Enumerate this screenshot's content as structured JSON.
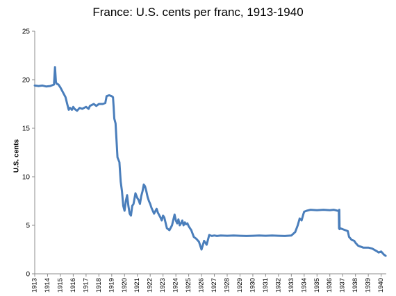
{
  "chart_data": {
    "type": "line",
    "title": "France: U.S. cents per franc, 1913-1940",
    "xlabel": "",
    "ylabel": "U.S. cents",
    "xlim": [
      1913,
      1940.4
    ],
    "ylim": [
      0,
      25
    ],
    "y_ticks": [
      "0",
      "5",
      "10",
      "15",
      "20",
      "25"
    ],
    "x_ticks": [
      "1913",
      "1914",
      "1915",
      "1916",
      "1917",
      "1918",
      "1919",
      "1920",
      "1921",
      "1922",
      "1923",
      "1924",
      "1925",
      "1926",
      "1927",
      "1928",
      "1929",
      "1930",
      "1931",
      "1932",
      "1933",
      "1934",
      "1935",
      "1936",
      "1937",
      "1938",
      "1939",
      "1940"
    ],
    "grid": false,
    "legend": "none",
    "series": [
      {
        "color": "#4a7ebb",
        "x": [
          1913.0,
          1913.3,
          1913.6,
          1913.9,
          1914.2,
          1914.5,
          1914.58,
          1914.65,
          1914.7,
          1914.85,
          1915.0,
          1915.2,
          1915.4,
          1915.55,
          1915.65,
          1915.75,
          1915.9,
          1916.0,
          1916.1,
          1916.3,
          1916.5,
          1916.7,
          1917.0,
          1917.2,
          1917.3,
          1917.6,
          1917.8,
          1918.0,
          1918.3,
          1918.5,
          1918.6,
          1918.8,
          1919.0,
          1919.1,
          1919.15,
          1919.2,
          1919.3,
          1919.45,
          1919.6,
          1919.7,
          1919.8,
          1919.9,
          1920.0,
          1920.1,
          1920.2,
          1920.3,
          1920.4,
          1920.5,
          1920.6,
          1920.7,
          1920.85,
          1921.0,
          1921.1,
          1921.2,
          1921.3,
          1921.4,
          1921.5,
          1921.6,
          1921.7,
          1921.8,
          1921.9,
          1922.0,
          1922.1,
          1922.3,
          1922.5,
          1922.6,
          1922.8,
          1922.9,
          1923.0,
          1923.1,
          1923.3,
          1923.5,
          1923.7,
          1923.9,
          1924.0,
          1924.1,
          1924.2,
          1924.3,
          1924.4,
          1924.5,
          1924.6,
          1924.7,
          1924.8,
          1924.9,
          1925.0,
          1925.2,
          1925.4,
          1925.6,
          1925.8,
          1926.0,
          1926.2,
          1926.4,
          1926.5,
          1926.6,
          1926.8,
          1927.0,
          1927.2,
          1927.5,
          1928.0,
          1928.5,
          1929.0,
          1929.5,
          1930.0,
          1930.5,
          1931.0,
          1931.5,
          1932.0,
          1932.5,
          1933.0,
          1933.3,
          1933.5,
          1933.65,
          1933.8,
          1933.95,
          1934.0,
          1934.2,
          1934.5,
          1935.0,
          1935.5,
          1936.0,
          1936.3,
          1936.6,
          1936.7,
          1936.72,
          1936.74,
          1936.76,
          1936.78,
          1937.0,
          1937.2,
          1937.4,
          1937.5,
          1937.7,
          1937.9,
          1938.0,
          1938.2,
          1938.4,
          1938.6,
          1939.0,
          1939.3,
          1939.7,
          1939.8,
          1940.0,
          1940.2,
          1940.35
        ],
        "y": [
          19.4,
          19.35,
          19.4,
          19.3,
          19.35,
          19.5,
          21.3,
          19.8,
          19.6,
          19.5,
          19.2,
          18.7,
          18.2,
          17.4,
          16.9,
          17.1,
          16.9,
          17.2,
          17.0,
          16.8,
          17.1,
          17.0,
          17.2,
          17.0,
          17.3,
          17.5,
          17.3,
          17.5,
          17.5,
          17.6,
          18.3,
          18.4,
          18.3,
          18.2,
          17.2,
          16.0,
          15.5,
          12.0,
          11.5,
          9.5,
          8.5,
          7.0,
          6.5,
          7.5,
          8.1,
          7.0,
          6.2,
          6.0,
          7.0,
          7.2,
          8.3,
          7.8,
          7.6,
          7.2,
          8.0,
          8.5,
          9.2,
          9.0,
          8.5,
          7.9,
          7.5,
          7.2,
          6.8,
          6.2,
          6.7,
          6.3,
          5.8,
          5.5,
          6.0,
          5.8,
          4.7,
          4.5,
          5.0,
          6.1,
          5.5,
          5.2,
          5.6,
          5.0,
          5.2,
          5.5,
          5.0,
          5.3,
          5.1,
          5.2,
          4.9,
          4.5,
          3.8,
          3.6,
          3.3,
          2.5,
          3.4,
          3.0,
          3.5,
          4.0,
          3.9,
          3.95,
          3.9,
          3.95,
          3.92,
          3.95,
          3.92,
          3.9,
          3.92,
          3.95,
          3.92,
          3.95,
          3.92,
          3.9,
          3.95,
          4.3,
          5.0,
          5.7,
          5.5,
          6.2,
          6.4,
          6.5,
          6.6,
          6.55,
          6.6,
          6.55,
          6.6,
          6.5,
          6.5,
          4.7,
          6.6,
          4.6,
          4.7,
          4.6,
          4.5,
          4.4,
          3.8,
          3.5,
          3.4,
          3.2,
          2.9,
          2.8,
          2.7,
          2.7,
          2.6,
          2.3,
          2.2,
          2.3,
          2.0,
          1.85
        ]
      }
    ]
  }
}
